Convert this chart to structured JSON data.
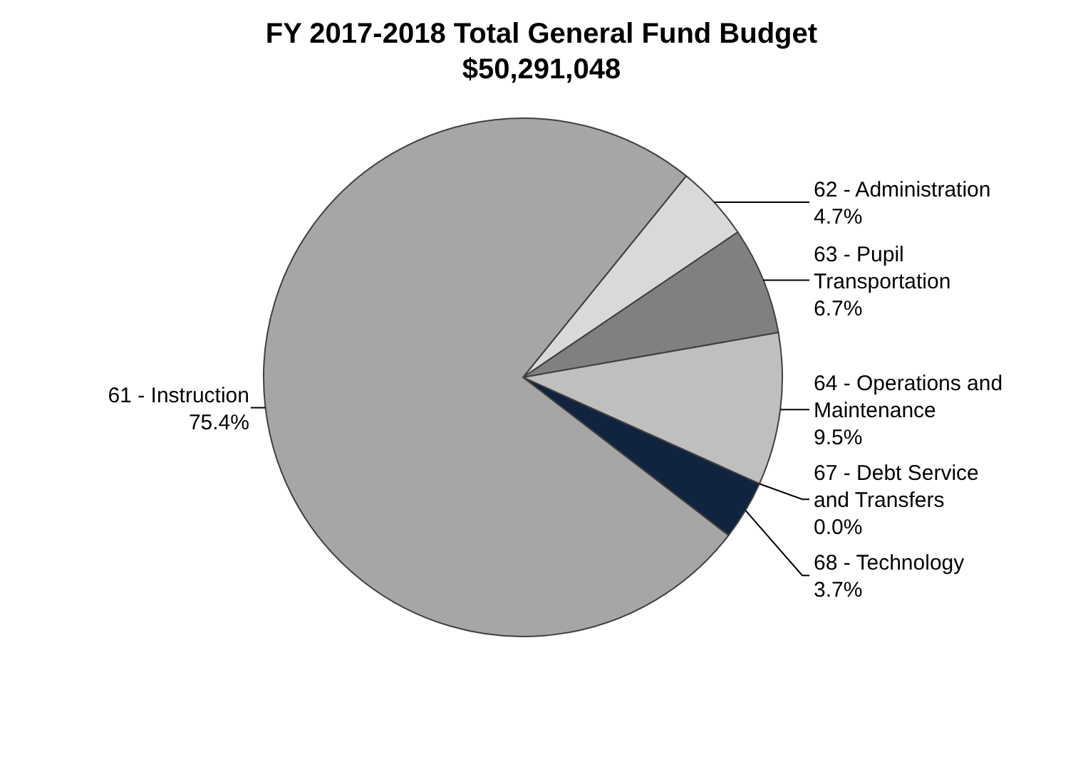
{
  "chart_data": {
    "type": "pie",
    "title": "FY 2017-2018 Total General Fund Budget",
    "subtitle": "$50,291,048",
    "categories": [
      "62 - Administration",
      "63 - Pupil Transportation",
      "64 - Operations and Maintenance",
      "67 - Debt Service and Transfers",
      "68 - Technology",
      "61 - Instruction"
    ],
    "values": [
      4.7,
      6.7,
      9.5,
      0.0,
      3.7,
      75.4
    ],
    "value_labels": [
      "4.7%",
      "6.7%",
      "9.5%",
      "0.0%",
      "3.7%",
      "75.4%"
    ],
    "colors": [
      "#d9d9d9",
      "#808080",
      "#bfbfbf",
      "#d0d0d0",
      "#10243f",
      "#a6a6a6"
    ]
  }
}
